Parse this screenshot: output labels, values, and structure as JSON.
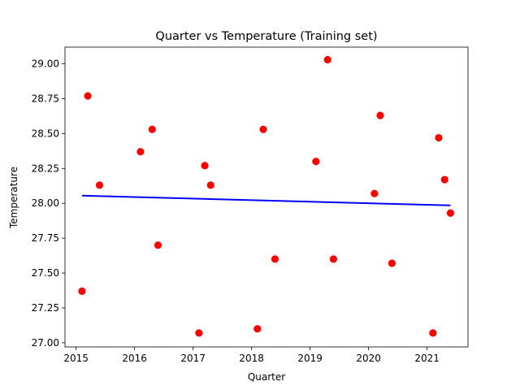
{
  "chart_data": {
    "type": "scatter",
    "title": "Quarter vs Temperature (Training set)",
    "xlabel": "Quarter",
    "ylabel": "Temperature",
    "xlim": [
      2014.81,
      2021.7
    ],
    "ylim": [
      26.97,
      29.12
    ],
    "grid": false,
    "x_ticks": [
      2015,
      2016,
      2017,
      2018,
      2019,
      2020,
      2021
    ],
    "y_ticks": [
      27.0,
      27.25,
      27.5,
      27.75,
      28.0,
      28.25,
      28.5,
      28.75,
      29.0
    ],
    "x_tick_labels": [
      "2015",
      "2016",
      "2017",
      "2018",
      "2019",
      "2020",
      "2021"
    ],
    "y_tick_labels": [
      "27.00",
      "27.25",
      "27.50",
      "27.75",
      "28.00",
      "28.25",
      "28.50",
      "28.75",
      "29.00"
    ],
    "points": [
      {
        "x": 2015.1,
        "y": 27.37
      },
      {
        "x": 2015.2,
        "y": 28.77
      },
      {
        "x": 2015.4,
        "y": 28.13
      },
      {
        "x": 2016.1,
        "y": 28.37
      },
      {
        "x": 2016.3,
        "y": 28.53
      },
      {
        "x": 2016.4,
        "y": 27.7
      },
      {
        "x": 2017.1,
        "y": 27.07
      },
      {
        "x": 2017.2,
        "y": 28.27
      },
      {
        "x": 2017.3,
        "y": 28.13
      },
      {
        "x": 2018.1,
        "y": 27.1
      },
      {
        "x": 2018.2,
        "y": 28.53
      },
      {
        "x": 2018.4,
        "y": 27.6
      },
      {
        "x": 2019.1,
        "y": 28.3
      },
      {
        "x": 2019.3,
        "y": 29.03
      },
      {
        "x": 2019.4,
        "y": 27.6
      },
      {
        "x": 2020.1,
        "y": 28.07
      },
      {
        "x": 2020.2,
        "y": 28.63
      },
      {
        "x": 2020.4,
        "y": 27.57
      },
      {
        "x": 2021.1,
        "y": 27.07
      },
      {
        "x": 2021.2,
        "y": 28.47
      },
      {
        "x": 2021.3,
        "y": 28.17
      },
      {
        "x": 2021.4,
        "y": 27.93
      }
    ],
    "regression_line": {
      "x": [
        2015.1,
        2021.4
      ],
      "y": [
        28.055,
        27.985
      ]
    },
    "point_color": "#ff0000",
    "line_color": "#0000ff"
  }
}
